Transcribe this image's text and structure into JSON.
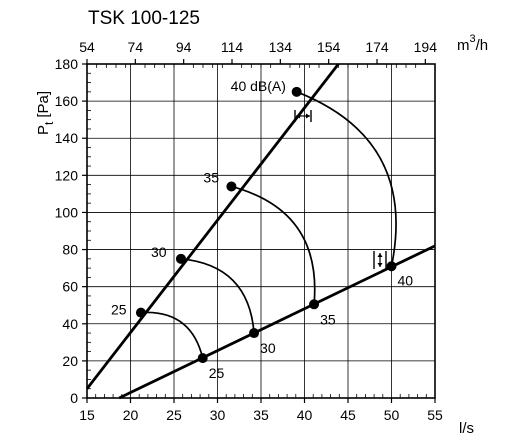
{
  "chart_data": {
    "type": "line",
    "title": "TSK 100-125",
    "xlabel": "l/s",
    "ylabel": "P",
    "ylabel_sub": "t",
    "ylabel_unit": "[Pa]",
    "x2label": "m",
    "x2label_sup": "3",
    "x2label_suffix": "/h",
    "xlim": [
      15,
      55
    ],
    "ylim": [
      0,
      180
    ],
    "x2lim": [
      54,
      198
    ],
    "xticks": [
      15,
      20,
      25,
      30,
      35,
      40,
      45,
      50,
      55
    ],
    "yticks": [
      0,
      20,
      40,
      60,
      80,
      100,
      120,
      140,
      160,
      180
    ],
    "x2ticks": [
      54,
      74,
      94,
      114,
      134,
      154,
      174,
      194
    ],
    "grid": true,
    "series": [
      {
        "values": [
          [
            15,
            5
          ],
          [
            43.9,
            180
          ]
        ]
      },
      {
        "values": [
          [
            18.7,
            0
          ],
          [
            55,
            82
          ]
        ]
      }
    ],
    "sound_curves": [
      {
        "label": "25",
        "points": [
          [
            21.2,
            46
          ],
          [
            28.3,
            21.5
          ]
        ]
      },
      {
        "label": "30",
        "points": [
          [
            25.8,
            75
          ],
          [
            34.2,
            35
          ]
        ]
      },
      {
        "label": "35",
        "points": [
          [
            31.6,
            114
          ],
          [
            41.1,
            50.5
          ]
        ]
      },
      {
        "label": "40 dB(A)",
        "points": [
          [
            39.1,
            165
          ],
          [
            50.0,
            71
          ]
        ]
      }
    ],
    "point_labels": [
      {
        "text": "25",
        "x": 21.2,
        "y": 46
      },
      {
        "text": "30",
        "x": 25.8,
        "y": 75
      },
      {
        "text": "35",
        "x": 31.6,
        "y": 114
      },
      {
        "text": "40 dB(A)",
        "x": 39.1,
        "y": 165
      },
      {
        "text": "25",
        "x": 28.3,
        "y": 21.5
      },
      {
        "text": "30",
        "x": 34.2,
        "y": 35
      },
      {
        "text": "35",
        "x": 41.1,
        "y": 50.5
      },
      {
        "text": "40",
        "x": 50.0,
        "y": 71
      }
    ]
  }
}
